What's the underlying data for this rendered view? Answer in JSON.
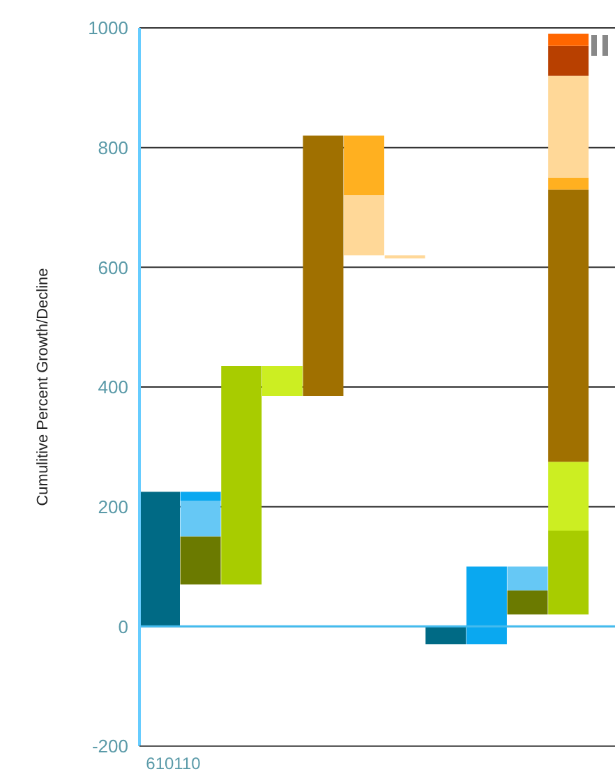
{
  "chart_data": {
    "type": "bar",
    "ylabel": "Cumulitive Percent Growth/Decline",
    "categories": [
      "610110",
      null,
      null,
      null,
      null,
      null,
      null,
      null,
      null,
      null,
      null,
      null,
      null
    ],
    "ylim": [
      -200,
      1000
    ],
    "yticks": [
      -200,
      0,
      200,
      400,
      600,
      800,
      1000
    ],
    "grid": "y",
    "ref_lines": [
      {
        "axis": "y",
        "value": 0,
        "color": "#44bbee"
      }
    ],
    "series": [
      {
        "color": "#006a85",
        "values": [
          225,
          null,
          null,
          null,
          null,
          null,
          null,
          30,
          null,
          null,
          null,
          null,
          null
        ],
        "base": [
          0,
          null,
          null,
          null,
          null,
          null,
          null,
          -30,
          null,
          null,
          null,
          null,
          null
        ]
      },
      {
        "color": "#0aa8f0",
        "values": [
          null,
          15,
          null,
          null,
          null,
          null,
          null,
          null,
          130,
          null,
          null,
          null,
          null
        ],
        "base": [
          null,
          210,
          null,
          null,
          null,
          null,
          null,
          null,
          -30,
          null,
          null,
          null,
          null
        ]
      },
      {
        "color": "#66c8f5",
        "values": [
          null,
          60,
          null,
          null,
          null,
          null,
          null,
          null,
          null,
          40,
          null,
          null,
          null
        ],
        "base": [
          null,
          150,
          null,
          null,
          null,
          null,
          null,
          null,
          null,
          60,
          null,
          null,
          null
        ]
      },
      {
        "color": "#6b7a00",
        "values": [
          null,
          80,
          null,
          null,
          null,
          null,
          null,
          null,
          null,
          40,
          null,
          null,
          null
        ],
        "base": [
          null,
          70,
          null,
          null,
          null,
          null,
          null,
          null,
          null,
          20,
          null,
          null,
          null
        ]
      },
      {
        "color": "#a8cc00",
        "values": [
          null,
          null,
          365,
          null,
          null,
          null,
          null,
          null,
          null,
          null,
          140,
          null,
          null
        ],
        "base": [
          null,
          null,
          70,
          null,
          null,
          null,
          null,
          null,
          null,
          null,
          20,
          null,
          null
        ]
      },
      {
        "color": "#ccee22",
        "values": [
          null,
          null,
          null,
          50,
          null,
          null,
          null,
          null,
          null,
          null,
          115,
          null,
          null
        ],
        "base": [
          null,
          null,
          null,
          385,
          null,
          null,
          null,
          null,
          null,
          null,
          160,
          null,
          null
        ]
      },
      {
        "color": "#a07000",
        "values": [
          null,
          null,
          null,
          null,
          435,
          null,
          null,
          null,
          null,
          null,
          455,
          null,
          null
        ],
        "base": [
          null,
          null,
          null,
          null,
          385,
          null,
          null,
          null,
          null,
          null,
          275,
          null,
          null
        ]
      },
      {
        "color": "#ffb020",
        "values": [
          null,
          null,
          null,
          null,
          null,
          100,
          null,
          null,
          null,
          null,
          20,
          null,
          null
        ],
        "base": [
          null,
          null,
          null,
          null,
          null,
          720,
          null,
          null,
          null,
          null,
          730,
          null,
          null
        ]
      },
      {
        "color": "#ffd898",
        "values": [
          null,
          null,
          null,
          null,
          null,
          100,
          5,
          null,
          null,
          null,
          170,
          null,
          null
        ],
        "base": [
          null,
          null,
          null,
          null,
          null,
          620,
          615,
          null,
          null,
          null,
          750,
          null,
          null
        ]
      },
      {
        "color": "#b84000",
        "values": [
          null,
          null,
          null,
          null,
          null,
          null,
          null,
          null,
          null,
          null,
          50,
          null,
          null
        ],
        "base": [
          null,
          null,
          null,
          null,
          null,
          null,
          null,
          null,
          null,
          null,
          920,
          null,
          null
        ]
      },
      {
        "color": "#ff6600",
        "values": [
          null,
          null,
          null,
          null,
          null,
          null,
          null,
          null,
          null,
          null,
          20,
          null,
          null
        ],
        "base": [
          null,
          null,
          null,
          null,
          null,
          null,
          null,
          null,
          null,
          null,
          970,
          null,
          null
        ]
      }
    ]
  }
}
